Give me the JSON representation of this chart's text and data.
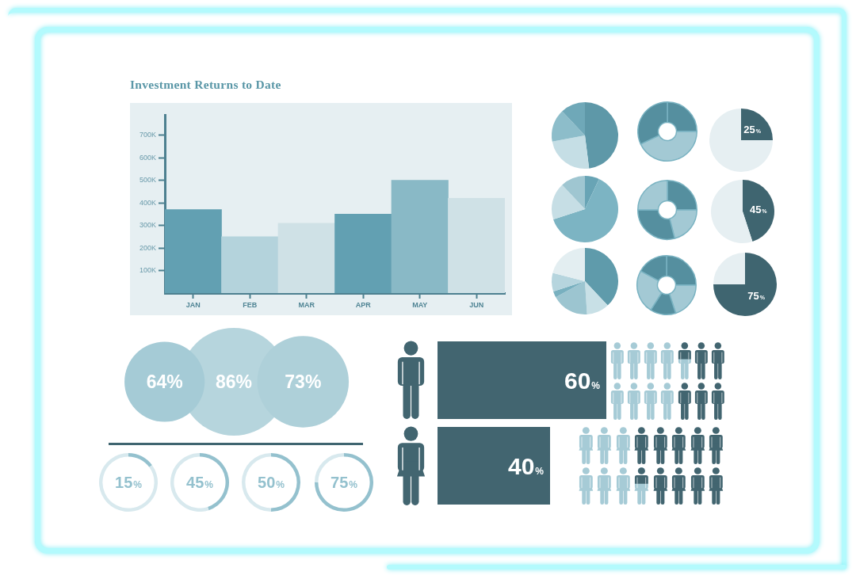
{
  "chart_data": [
    {
      "type": "bar",
      "title": "Investment Returns to Date",
      "categories": [
        "JAN",
        "FEB",
        "MAR",
        "APR",
        "MAY",
        "JUN"
      ],
      "values": [
        370000,
        250000,
        310000,
        350000,
        500000,
        420000
      ],
      "colors": [
        "#62a0b2",
        "#b4d3dc",
        "#cfe1e6",
        "#62a0b2",
        "#89b9c6",
        "#cfe1e6"
      ],
      "ylim": [
        0,
        790000
      ],
      "yticks": [
        {
          "value": 100000,
          "label": "100K"
        },
        {
          "value": 200000,
          "label": "200K"
        },
        {
          "value": 300000,
          "label": "300K"
        },
        {
          "value": 400000,
          "label": "400K"
        },
        {
          "value": 500000,
          "label": "500K"
        },
        {
          "value": 600000,
          "label": "600K"
        },
        {
          "value": 700000,
          "label": "700K"
        }
      ]
    },
    {
      "type": "pie",
      "categories": [
        null,
        null,
        null,
        null
      ],
      "values": [
        48,
        24,
        16,
        12
      ],
      "colors": [
        "#5e98a8",
        "#c5dee5",
        "#8dbdca",
        "#6fa8b8"
      ]
    },
    {
      "type": "donut",
      "categories": [
        null,
        null,
        null
      ],
      "values": [
        25,
        43,
        32
      ],
      "colors": [
        "#558f9f",
        "#a3c9d4",
        "#558f9f"
      ]
    },
    {
      "type": "pie",
      "categories": [
        null,
        null
      ],
      "values": [
        25,
        75
      ],
      "colors": [
        "#3f6570",
        "#e6eff2"
      ],
      "value_labels": [
        "25%",
        null
      ]
    },
    {
      "type": "pie",
      "categories": [
        null,
        null,
        null,
        null
      ],
      "values": [
        7,
        63,
        18,
        12
      ],
      "colors": [
        "#68a4b5",
        "#7cb4c3",
        "#c6dee5",
        "#9fc6d1"
      ]
    },
    {
      "type": "donut",
      "categories": [
        null,
        null,
        null,
        null
      ],
      "values": [
        25,
        21,
        29,
        25
      ],
      "colors": [
        "#558f9f",
        "#a3c9d4",
        "#558f9f",
        "#a3c9d4"
      ]
    },
    {
      "type": "pie",
      "categories": [
        null,
        null
      ],
      "values": [
        45,
        55
      ],
      "colors": [
        "#3f6570",
        "#e6eff2"
      ],
      "value_labels": [
        "45%",
        null
      ]
    },
    {
      "type": "pie",
      "categories": [
        null,
        null,
        null,
        null,
        null,
        null
      ],
      "values": [
        38,
        11,
        18,
        3,
        9,
        21
      ],
      "colors": [
        "#5f9bab",
        "#c8e0e6",
        "#9cc5d0",
        "#78b0bf",
        "#b6d5de",
        "#e3eef1"
      ]
    },
    {
      "type": "donut",
      "categories": [
        null,
        null,
        null,
        null,
        null
      ],
      "values": [
        25,
        20,
        14,
        24,
        17
      ],
      "colors": [
        "#558f9f",
        "#a3c9d4",
        "#558f9f",
        "#a3c9d4",
        "#558f9f"
      ]
    },
    {
      "type": "pie",
      "categories": [
        null,
        null
      ],
      "values": [
        75,
        25
      ],
      "colors": [
        "#3f6570",
        "#e6eff2"
      ],
      "value_labels": [
        "75%",
        null
      ]
    },
    {
      "type": "other",
      "categories": [
        null,
        null,
        null
      ],
      "values": [
        64,
        86,
        73
      ],
      "colors": [
        "#a5cbd6",
        "#b6d5dd",
        "#aed0d9"
      ],
      "value_labels": [
        "64%",
        "86%",
        "73%"
      ]
    },
    {
      "type": "donut",
      "categories": [
        null,
        null
      ],
      "values": [
        15,
        85
      ],
      "colors": [
        "#94c1ce",
        "#d8e9ee"
      ],
      "annotations": [
        "15%"
      ]
    },
    {
      "type": "donut",
      "categories": [
        null,
        null
      ],
      "values": [
        45,
        55
      ],
      "colors": [
        "#94c1ce",
        "#d8e9ee"
      ],
      "annotations": [
        "45%"
      ]
    },
    {
      "type": "donut",
      "categories": [
        null,
        null
      ],
      "values": [
        50,
        50
      ],
      "colors": [
        "#94c1ce",
        "#d8e9ee"
      ],
      "annotations": [
        "50%"
      ]
    },
    {
      "type": "donut",
      "categories": [
        null,
        null
      ],
      "values": [
        75,
        25
      ],
      "colors": [
        "#94c1ce",
        "#d8e9ee"
      ],
      "annotations": [
        "75%"
      ]
    },
    {
      "type": "bar",
      "orientation": "horizontal",
      "categories": [
        null,
        null
      ],
      "values": [
        60,
        40
      ],
      "color": "#426570",
      "xlim": [
        0,
        100
      ],
      "tick_labels": false,
      "value_labels": [
        "60%",
        "40%"
      ]
    }
  ]
}
